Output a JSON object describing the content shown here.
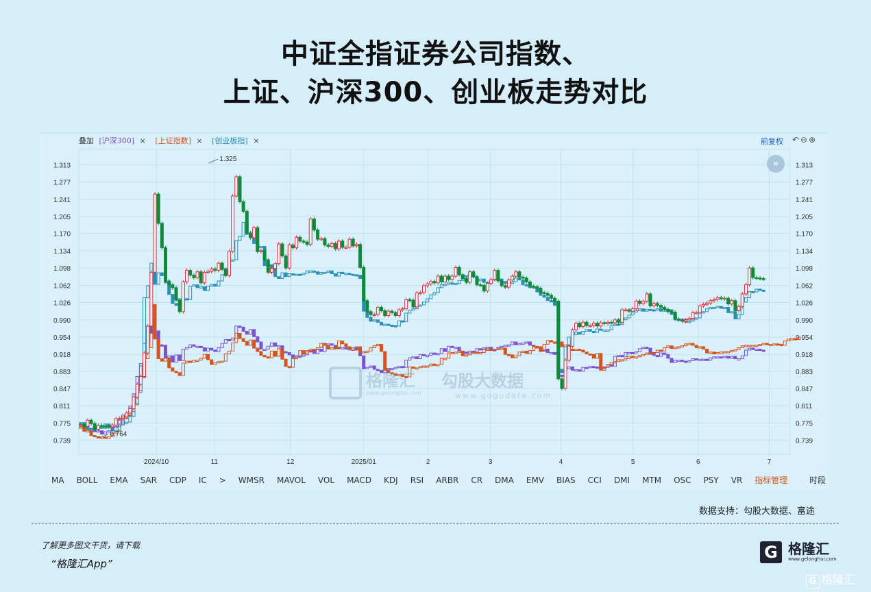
{
  "title": {
    "line1": "中证全指证券公司指数、",
    "line2": "上证、沪深300、创业板走势对比"
  },
  "overlay": {
    "label": "叠加",
    "items": [
      {
        "text": "[沪深300]",
        "color": "#7b52cf",
        "close": "×"
      },
      {
        "text": "[上证指数]",
        "color": "#d2541e",
        "close": "×"
      },
      {
        "text": "[创业板指]",
        "color": "#2a8fb3",
        "close": "×"
      }
    ],
    "rights": "前复权",
    "toolbar_icons": "↶⊖⊕",
    "expand_icon": "»"
  },
  "indicators": [
    "MA",
    "BOLL",
    "EMA",
    "SAR",
    "CDP",
    "IC",
    ">",
    "WMSR",
    "MAVOL",
    "VOL",
    "MACD",
    "KDJ",
    "RSI",
    "ARBR",
    "CR",
    "DMA",
    "EMV",
    "BIAS",
    "CCI",
    "DMI",
    "MTM",
    "OSC",
    "PSY",
    "VR",
    "指标管理"
  ],
  "period_label": "时段",
  "source": "数据支持：勾股大数据、富途",
  "cta": {
    "line1": "了解更多图文干货，请下载",
    "line2": "“格隆汇App”"
  },
  "logo": {
    "mark": "G",
    "name": "格隆汇",
    "url": "www.gelonghui.com"
  },
  "corner_watermark": {
    "mark": "G",
    "text": "格隆汇"
  },
  "center_watermark": {
    "brand1": "格隆汇",
    "url1": "www.gelonghui.com",
    "brand2": "勾股大数据",
    "url2": "www.gogudata.com"
  },
  "colors": {
    "up": "#d8323a",
    "down": "#0f8a3a",
    "hs300": "#7b52cf",
    "sh": "#d2541e",
    "cyb": "#2a8fb3",
    "bg": "#d6eefa"
  },
  "chart_data": {
    "type": "candlestick",
    "title": "",
    "y_ticks": [
      1.313,
      1.277,
      1.241,
      1.205,
      1.17,
      1.134,
      1.098,
      1.062,
      1.026,
      0.99,
      0.954,
      0.918,
      0.883,
      0.847,
      0.811,
      0.775,
      0.739
    ],
    "ylim": [
      0.71,
      1.345
    ],
    "x_ticks": [
      {
        "label": "2024/10",
        "x": 21.9
      },
      {
        "label": "11",
        "x": 38.3
      },
      {
        "label": "12",
        "x": 59.8
      },
      {
        "label": "2025/01",
        "x": 80.5
      },
      {
        "label": "2",
        "x": 98.7
      },
      {
        "label": "3",
        "x": 116.3
      },
      {
        "label": "4",
        "x": 136.2
      },
      {
        "label": "5",
        "x": 156.6
      },
      {
        "label": "6",
        "x": 175.0
      },
      {
        "label": "7",
        "x": 195.1
      }
    ],
    "xlim": [
      0,
      201
    ],
    "annotations": [
      {
        "text": "1.325",
        "x": 39,
        "y": 1.325
      },
      {
        "text": "0.764",
        "x": 8,
        "y": 0.752
      }
    ],
    "main_series": {
      "name": "中证全指证券公司指数",
      "close": [
        0.772,
        0.768,
        0.781,
        0.774,
        0.762,
        0.77,
        0.769,
        0.768,
        0.767,
        0.771,
        0.784,
        0.785,
        0.788,
        0.796,
        0.805,
        0.829,
        0.856,
        0.872,
        0.921,
        0.977,
        1.089,
        1.252,
        1.191,
        1.14,
        1.071,
        1.063,
        1.057,
        1.031,
        1.007,
        1.069,
        1.093,
        1.083,
        1.078,
        1.09,
        1.067,
        1.089,
        1.091,
        1.096,
        1.093,
        1.108,
        1.095,
        1.082,
        1.133,
        1.248,
        1.288,
        1.236,
        1.216,
        1.171,
        1.161,
        1.182,
        1.132,
        1.134,
        1.115,
        1.089,
        1.097,
        1.107,
        1.148,
        1.123,
        1.098,
        1.146,
        1.14,
        1.162,
        1.154,
        1.152,
        1.147,
        1.2,
        1.177,
        1.158,
        1.159,
        1.146,
        1.143,
        1.149,
        1.138,
        1.154,
        1.141,
        1.141,
        1.158,
        1.144,
        1.147,
        1.099,
        1.03,
        1.007,
        1.001,
        1.001,
        1.016,
        1.009,
        0.999,
        1.008,
        1.005,
        0.999,
        1.011,
        1.013,
        1.032,
        1.031,
        1.017,
        1.046,
        1.047,
        1.061,
        1.065,
        1.07,
        1.067,
        1.081,
        1.069,
        1.081,
        1.074,
        1.081,
        1.099,
        1.084,
        1.076,
        1.068,
        1.09,
        1.08,
        1.063,
        1.062,
        1.05,
        1.066,
        1.074,
        1.093,
        1.071,
        1.061,
        1.058,
        1.073,
        1.081,
        1.09,
        1.079,
        1.077,
        1.069,
        1.06,
        1.059,
        1.056,
        1.047,
        1.045,
        1.041,
        1.035,
        1.029,
        0.867,
        0.847,
        0.906,
        0.935,
        0.969,
        0.983,
        0.976,
        0.985,
        0.978,
        0.978,
        0.983,
        0.977,
        0.984,
        0.982,
        0.985,
        0.984,
        0.99,
        0.985,
        1.011,
        1.011,
        1.008,
        1.013,
        1.029,
        1.024,
        1.029,
        1.044,
        1.019,
        1.024,
        1.02,
        1.016,
        1.012,
        1.007,
        1.006,
        0.992,
        0.99,
        0.987,
        0.99,
        0.993,
        1.005,
        1.005,
        1.019,
        1.022,
        1.025,
        1.03,
        1.032,
        1.036,
        1.034,
        1.035,
        1.023,
        1.03,
        1.009,
        1.018,
        1.044,
        1.063,
        1.098,
        1.078,
        1.077,
        1.076,
        1.075
      ]
    },
    "series": [
      {
        "name": "沪深300",
        "values": [
          0.77,
          0.771,
          0.762,
          0.764,
          0.757,
          0.759,
          0.752,
          0.757,
          0.759,
          0.767,
          0.768,
          0.781,
          0.792,
          0.79,
          0.811,
          0.836,
          0.872,
          0.894,
          0.941,
          0.977,
          0.962,
          0.967,
          0.938,
          0.937,
          0.911,
          0.915,
          0.902,
          0.917,
          0.905,
          0.929,
          0.932,
          0.938,
          0.935,
          0.935,
          0.932,
          0.925,
          0.931,
          0.927,
          0.924,
          0.932,
          0.941,
          0.949,
          0.948,
          0.952,
          0.977,
          0.975,
          0.966,
          0.96,
          0.97,
          0.955,
          0.944,
          0.929,
          0.929,
          0.935,
          0.942,
          0.935,
          0.936,
          0.924,
          0.922,
          0.917,
          0.911,
          0.915,
          0.914,
          0.917,
          0.923,
          0.929,
          0.92,
          0.929,
          0.924,
          0.937,
          0.94,
          0.937,
          0.933,
          0.931,
          0.932,
          0.929,
          0.93,
          0.932,
          0.927,
          0.915,
          0.888,
          0.891,
          0.894,
          0.887,
          0.885,
          0.88,
          0.888,
          0.889,
          0.889,
          0.891,
          0.893,
          0.891,
          0.906,
          0.911,
          0.913,
          0.909,
          0.918,
          0.915,
          0.916,
          0.921,
          0.918,
          0.92,
          0.93,
          0.924,
          0.935,
          0.933,
          0.933,
          0.925,
          0.923,
          0.921,
          0.925,
          0.922,
          0.93,
          0.928,
          0.932,
          0.933,
          0.929,
          0.929,
          0.933,
          0.935,
          0.937,
          0.938,
          0.944,
          0.938,
          0.941,
          0.942,
          0.944,
          0.937,
          0.934,
          0.934,
          0.928,
          0.929,
          0.922,
          0.922,
          0.918,
          0.875,
          0.873,
          0.888,
          0.892,
          0.885,
          0.886,
          0.883,
          0.891,
          0.89,
          0.893,
          0.892,
          0.89,
          0.892,
          0.891,
          0.896,
          0.893,
          0.914,
          0.916,
          0.913,
          0.922,
          0.922,
          0.921,
          0.924,
          0.93,
          0.933,
          0.931,
          0.922,
          0.916,
          0.914,
          0.921,
          0.918,
          0.91,
          0.901,
          0.906,
          0.906,
          0.904,
          0.903,
          0.905,
          0.909,
          0.907,
          0.908,
          0.908,
          0.906,
          0.911,
          0.913,
          0.913,
          0.912,
          0.914,
          0.91,
          0.914,
          0.909,
          0.909,
          0.915,
          0.927,
          0.931,
          0.928,
          0.929,
          0.927,
          0.925
        ]
      },
      {
        "name": "上证指数",
        "values": [
          0.767,
          0.758,
          0.759,
          0.749,
          0.747,
          0.744,
          0.746,
          0.743,
          0.747,
          0.754,
          0.758,
          0.773,
          0.784,
          0.791,
          0.799,
          0.813,
          0.843,
          0.87,
          0.909,
          0.932,
          1.022,
          0.95,
          0.909,
          0.904,
          0.91,
          0.89,
          0.883,
          0.88,
          0.874,
          0.9,
          0.904,
          0.902,
          0.906,
          0.906,
          0.91,
          0.918,
          0.907,
          0.897,
          0.901,
          0.903,
          0.904,
          0.919,
          0.925,
          0.942,
          0.962,
          0.951,
          0.945,
          0.937,
          0.948,
          0.931,
          0.924,
          0.916,
          0.913,
          0.911,
          0.925,
          0.914,
          0.93,
          0.908,
          0.893,
          0.891,
          0.909,
          0.914,
          0.926,
          0.919,
          0.926,
          0.925,
          0.928,
          0.932,
          0.941,
          0.937,
          0.929,
          0.932,
          0.93,
          0.946,
          0.94,
          0.934,
          0.929,
          0.929,
          0.934,
          0.922,
          0.924,
          0.925,
          0.932,
          0.936,
          0.939,
          0.924,
          0.885,
          0.88,
          0.878,
          0.874,
          0.876,
          0.872,
          0.871,
          0.892,
          0.889,
          0.89,
          0.893,
          0.894,
          0.894,
          0.898,
          0.895,
          0.897,
          0.91,
          0.91,
          0.921,
          0.922,
          0.923,
          0.925,
          0.915,
          0.917,
          0.921,
          0.923,
          0.922,
          0.922,
          0.929,
          0.929,
          0.926,
          0.928,
          0.931,
          0.931,
          0.918,
          0.917,
          0.911,
          0.915,
          0.923,
          0.925,
          0.92,
          0.926,
          0.935,
          0.934,
          0.924,
          0.939,
          0.947,
          0.944,
          0.941,
          0.944,
          0.934,
          0.938,
          0.929,
          0.928,
          0.929,
          0.927,
          0.923,
          0.919,
          0.918,
          0.91,
          0.92,
          0.885,
          0.892,
          0.897,
          0.901,
          0.903,
          0.907,
          0.907,
          0.909,
          0.914,
          0.913,
          0.913,
          0.916,
          0.918,
          0.921,
          0.92,
          0.922,
          0.927,
          0.925,
          0.932,
          0.936,
          0.93,
          0.933,
          0.934,
          0.936,
          0.94,
          0.941,
          0.937,
          0.932,
          0.934,
          0.929,
          0.921,
          0.923,
          0.919,
          0.922,
          0.923,
          0.924,
          0.924,
          0.926,
          0.928,
          0.932,
          0.936,
          0.937,
          0.937,
          0.937,
          0.937,
          0.939,
          0.941,
          0.938,
          0.939,
          0.94,
          0.939,
          0.937,
          0.946,
          0.95,
          0.951,
          0.949,
          0.954
        ]
      },
      {
        "name": "创业板指",
        "values": [
          0.776,
          0.771,
          0.761,
          0.763,
          0.765,
          0.767,
          0.764,
          0.773,
          0.766,
          0.76,
          0.76,
          0.771,
          0.777,
          0.777,
          0.789,
          0.816,
          0.839,
          0.899,
          1.036,
          1.061,
          1.108,
          1.064,
          1.088,
          1.082,
          1.067,
          1.043,
          1.024,
          1.02,
          1.034,
          1.034,
          1.032,
          1.06,
          1.063,
          1.057,
          1.059,
          1.051,
          1.06,
          1.064,
          1.06,
          1.071,
          1.084,
          1.097,
          1.115,
          1.115,
          1.155,
          1.164,
          1.193,
          1.168,
          1.163,
          1.149,
          1.141,
          1.143,
          1.103,
          1.105,
          1.098,
          1.08,
          1.076,
          1.088,
          1.08,
          1.086,
          1.084,
          1.085,
          1.084,
          1.087,
          1.092,
          1.092,
          1.09,
          1.085,
          1.089,
          1.089,
          1.092,
          1.086,
          1.081,
          1.089,
          1.086,
          1.087,
          1.085,
          1.084,
          1.083,
          1.076,
          1.008,
          0.995,
          0.987,
          0.99,
          0.985,
          0.979,
          0.981,
          0.979,
          0.978,
          0.977,
          0.988,
          0.986,
          1.004,
          1.01,
          1.013,
          1.019,
          1.021,
          1.027,
          1.034,
          1.042,
          1.047,
          1.057,
          1.063,
          1.064,
          1.067,
          1.066,
          1.066,
          1.072,
          1.082,
          1.081,
          1.086,
          1.079,
          1.071,
          1.075,
          1.068,
          1.066,
          1.073,
          1.078,
          1.075,
          1.07,
          1.066,
          1.068,
          1.069,
          1.077,
          1.073,
          1.063,
          1.061,
          1.057,
          1.059,
          1.048,
          1.041,
          1.037,
          1.03,
          1.029,
          1.02,
          0.887,
          0.88,
          0.934,
          0.954,
          0.959,
          0.964,
          0.96,
          0.966,
          0.97,
          0.966,
          0.964,
          0.971,
          0.969,
          0.969,
          0.969,
          0.978,
          0.981,
          0.98,
          0.99,
          0.994,
          1.0,
          1.009,
          1.009,
          1.013,
          1.008,
          1.012,
          1.011,
          1.01,
          1.013,
          1.008,
          1.012,
          1.011,
          1.001,
          0.99,
          0.991,
          0.991,
          0.985,
          0.987,
          0.992,
          0.994,
          1.005,
          1.007,
          1.013,
          1.016,
          1.016,
          1.018,
          1.014,
          1.016,
          1.005,
          1.007,
          0.992,
          1.001,
          1.027,
          1.036,
          1.049,
          1.048,
          1.054,
          1.052,
          1.05
        ]
      }
    ],
    "grid": true,
    "legend": "top-left"
  }
}
